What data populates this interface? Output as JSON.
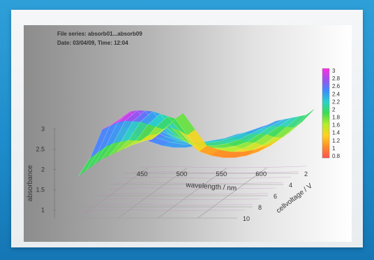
{
  "chart_data": {
    "type": "surface",
    "header_line1": "File series: absorb01...absorb09",
    "header_line2": "Date: 03/04/09, Time: 12:04",
    "xlabel": "wavelength / nm",
    "ylabel": "absorbance",
    "zlabel": "cellvoltage / V",
    "x_ticks": [
      "450",
      "500",
      "550",
      "600"
    ],
    "y_ticks": [
      "1",
      "1.5",
      "2",
      "2.5",
      "3"
    ],
    "z_ticks": [
      "2",
      "4",
      "6",
      "8",
      "10"
    ],
    "xlim": [
      430,
      650
    ],
    "ylim": [
      0.8,
      3
    ],
    "zlim": [
      1,
      10
    ],
    "colorbar_ticks": [
      "3",
      "2.8",
      "2.6",
      "2.4",
      "2.2",
      "2",
      "1.8",
      "1.6",
      "1.4",
      "1.2",
      "1",
      "0.8"
    ],
    "colorbar_range": [
      0.8,
      3
    ],
    "colorbar_colors": [
      "#ff5050",
      "#ff8c28",
      "#ffd21e",
      "#b4ee28",
      "#3cdc50",
      "#28d2c8",
      "#3c8cff",
      "#a050f0",
      "#ff2de1"
    ],
    "series": [
      {
        "name": "1",
        "x": [
          440,
          455,
          470,
          485,
          500,
          515,
          530,
          545,
          560,
          575,
          590,
          605,
          620,
          635,
          650
        ],
        "y": [
          1.45,
          1.5,
          1.75,
          2.0,
          1.6,
          1.2,
          1.1,
          1.05,
          1.05,
          1.1,
          1.2,
          1.35,
          1.55,
          1.8,
          2.1
        ]
      },
      {
        "name": "2",
        "x": [
          440,
          455,
          470,
          485,
          500,
          515,
          530,
          545,
          560,
          575,
          590,
          605,
          620,
          635,
          650
        ],
        "y": [
          1.5,
          1.6,
          1.95,
          2.2,
          1.85,
          1.5,
          1.35,
          1.25,
          1.2,
          1.25,
          1.35,
          1.5,
          1.7,
          1.95,
          2.2
        ]
      },
      {
        "name": "3",
        "x": [
          440,
          455,
          470,
          485,
          500,
          515,
          530,
          545,
          560,
          575,
          590,
          605,
          620,
          635,
          650
        ],
        "y": [
          1.55,
          1.75,
          2.15,
          2.4,
          2.05,
          1.75,
          1.6,
          1.5,
          1.45,
          1.45,
          1.55,
          1.7,
          1.9,
          2.1,
          2.3
        ]
      },
      {
        "name": "4",
        "x": [
          440,
          455,
          470,
          485,
          500,
          515,
          530,
          545,
          560,
          575,
          590,
          605,
          620,
          635,
          650
        ],
        "y": [
          1.6,
          1.9,
          2.35,
          2.6,
          2.25,
          2.0,
          1.85,
          1.75,
          1.7,
          1.7,
          1.75,
          1.85,
          2.05,
          2.25,
          2.4
        ]
      },
      {
        "name": "5",
        "x": [
          440,
          455,
          470,
          485,
          500,
          515,
          530,
          545,
          560,
          575,
          590,
          605,
          620,
          635,
          650
        ],
        "y": [
          1.65,
          2.0,
          2.5,
          2.75,
          2.45,
          2.2,
          2.05,
          1.95,
          1.9,
          1.9,
          1.95,
          2.05,
          2.2,
          2.35,
          2.5
        ]
      },
      {
        "name": "6",
        "x": [
          440,
          455,
          470,
          485,
          500,
          515,
          530,
          545,
          560,
          575,
          590,
          605,
          620,
          635,
          650
        ],
        "y": [
          1.7,
          2.1,
          2.65,
          2.9,
          2.6,
          2.4,
          2.25,
          2.15,
          2.1,
          2.1,
          2.15,
          2.25,
          2.35,
          2.45,
          2.55
        ]
      },
      {
        "name": "7",
        "x": [
          440,
          455,
          470,
          485,
          500,
          515,
          530,
          545,
          560,
          575,
          590,
          605,
          620,
          635,
          650
        ],
        "y": [
          1.7,
          2.15,
          2.75,
          3.0,
          2.75,
          2.55,
          2.4,
          2.3,
          2.25,
          2.25,
          2.3,
          2.35,
          2.45,
          2.5,
          2.6
        ]
      },
      {
        "name": "8",
        "x": [
          440,
          455,
          470,
          485,
          500,
          515,
          530,
          545,
          560,
          575,
          590,
          605,
          620,
          635,
          650
        ],
        "y": [
          1.7,
          2.15,
          2.8,
          3.0,
          2.85,
          2.65,
          2.5,
          2.4,
          2.35,
          2.35,
          2.4,
          2.45,
          2.5,
          2.55,
          2.6
        ]
      },
      {
        "name": "9",
        "x": [
          440,
          455,
          470,
          485,
          500,
          515,
          530,
          545,
          560,
          575,
          590,
          605,
          620,
          635,
          650
        ],
        "y": [
          1.7,
          2.15,
          2.85,
          3.0,
          2.9,
          2.7,
          2.55,
          2.45,
          2.4,
          2.4,
          2.45,
          2.5,
          2.55,
          2.6,
          2.6
        ]
      }
    ],
    "series_z": [
      1,
      2,
      3,
      4,
      5,
      6,
      7,
      8,
      9
    ]
  }
}
